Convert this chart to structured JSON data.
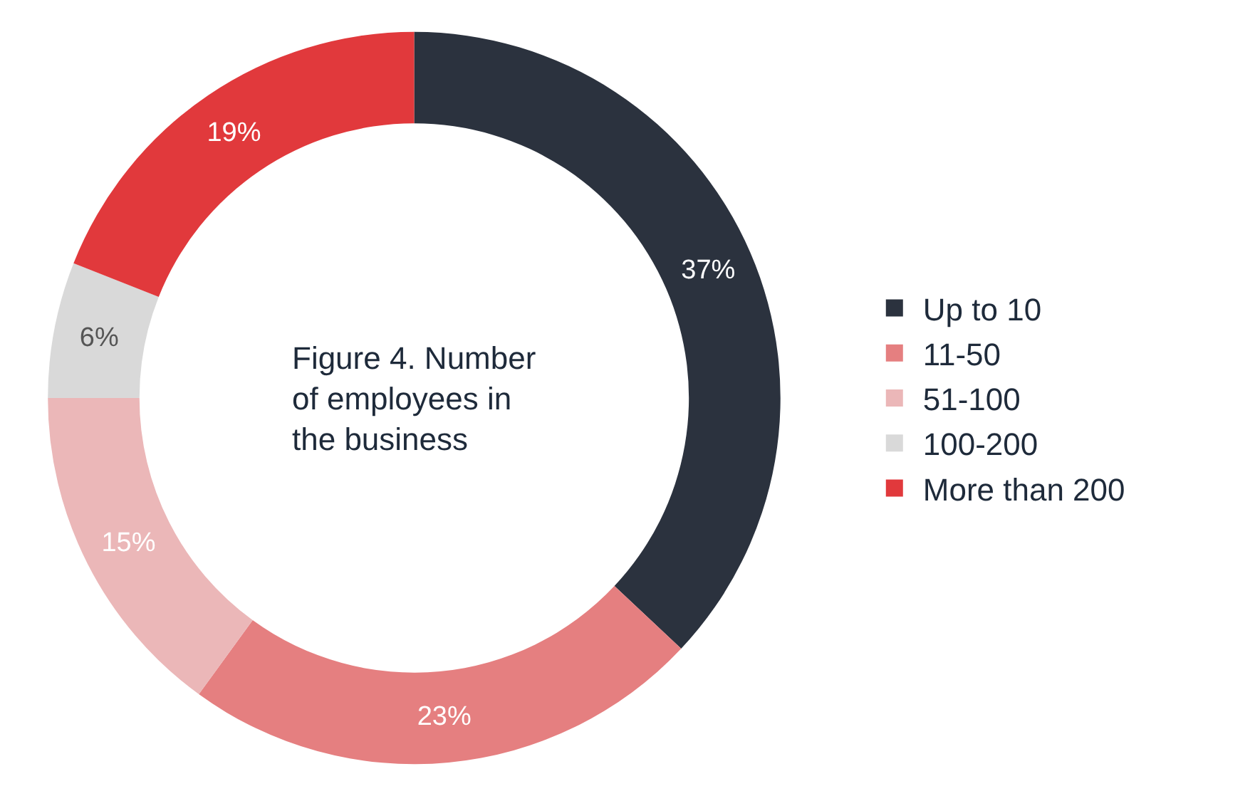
{
  "chart_data": {
    "type": "donut",
    "title": "Figure 4. Number\nof employees in\nthe business",
    "categories": [
      "Up to 10",
      "11-50",
      "51-100",
      "100-200",
      "More than 200"
    ],
    "values": [
      37,
      23,
      15,
      6,
      19
    ],
    "colors": [
      "#2b323e",
      "#e57f80",
      "#ebb7b8",
      "#d9d9d9",
      "#e1393c"
    ],
    "value_labels": [
      "37%",
      "23%",
      "15%",
      "6%",
      "19%"
    ],
    "legend": "right"
  }
}
